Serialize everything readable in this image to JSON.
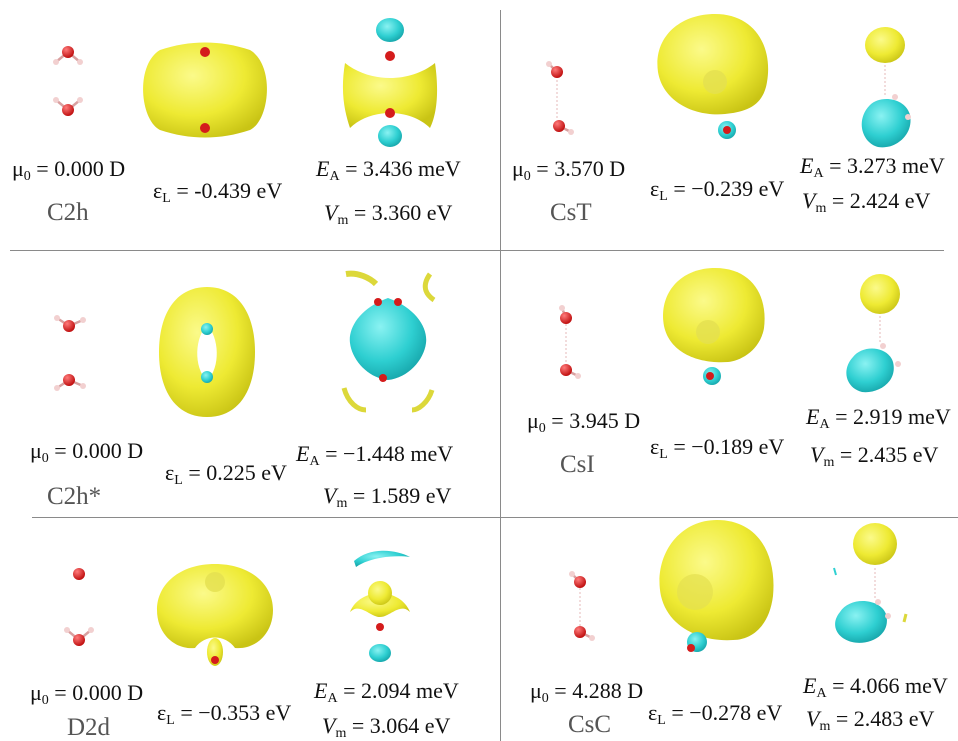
{
  "panels": [
    {
      "label": "C2h",
      "mu": "0.000 D",
      "eps": "-0.439 eV",
      "ea": "3.436 meV",
      "vm": "3.360 eV"
    },
    {
      "label": "CsT",
      "mu": "3.570 D",
      "eps": "−0.239 eV",
      "ea": "3.273 meV",
      "vm": "2.424 eV"
    },
    {
      "label": "C2h*",
      "mu": "0.000 D",
      "eps": "0.225 eV",
      "ea": "−1.448 meV",
      "vm": "1.589 eV"
    },
    {
      "label": "CsI",
      "mu": "3.945 D",
      "eps": "−0.189 eV",
      "ea": "2.919 meV",
      "vm": "2.435 eV"
    },
    {
      "label": "D2d",
      "mu": "0.000 D",
      "eps": "−0.353 eV",
      "ea": "2.094 meV",
      "vm": "3.064 eV"
    },
    {
      "label": "CsC",
      "mu": "4.288 D",
      "eps": "−0.278 eV",
      "ea": "4.066 meV",
      "vm": "2.483 eV"
    }
  ],
  "symbols": {
    "mu": "μ",
    "mu_sub": "0",
    "eps": "ε",
    "eps_sub": "L",
    "ea": "E",
    "ea_sub": "A",
    "vm": "V",
    "vm_sub": "m",
    "eq": " = "
  },
  "colors": {
    "isosurface_positive": "#f0ee3a",
    "isosurface_negative": "#2fd0d2",
    "oxygen": "#d41c1c",
    "hydrogen": "#f0c8c8",
    "divider": "#8a8a8a"
  }
}
